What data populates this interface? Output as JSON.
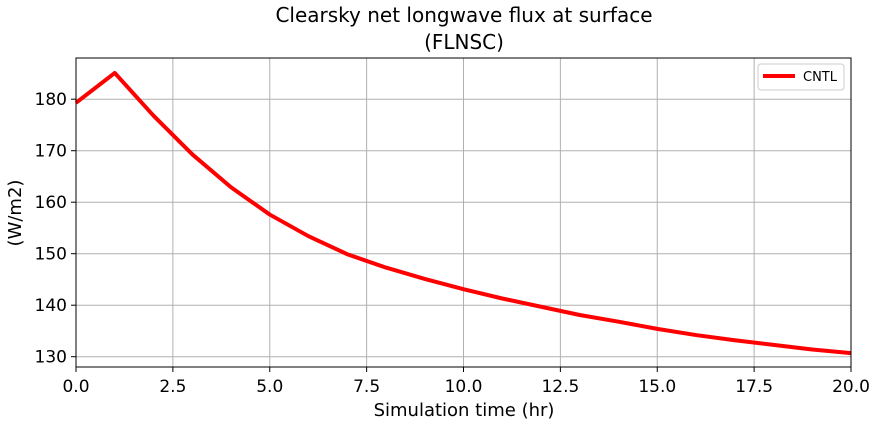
{
  "chart_data": {
    "type": "line",
    "title_line1": "Clearsky net longwave flux at surface",
    "title_line2": "(FLNSC)",
    "xlabel": "Simulation time (hr)",
    "ylabel": "(W/m2)",
    "xlim": [
      0,
      20
    ],
    "ylim": [
      128,
      188
    ],
    "xticks": [
      0,
      2.5,
      5,
      7.5,
      10,
      12.5,
      15,
      17.5,
      20
    ],
    "xtick_labels": [
      "0.0",
      "2.5",
      "5.0",
      "7.5",
      "10.0",
      "12.5",
      "15.0",
      "17.5",
      "20.0"
    ],
    "yticks": [
      130,
      140,
      150,
      160,
      170,
      180
    ],
    "ytick_labels": [
      "130",
      "140",
      "150",
      "160",
      "170",
      "180"
    ],
    "grid": true,
    "legend_position": "top-right",
    "series": [
      {
        "name": "CNTL",
        "color": "#ff0000",
        "x": [
          0,
          1,
          2,
          3,
          4,
          5,
          6,
          7,
          8,
          9,
          10,
          11,
          12,
          13,
          14,
          15,
          16,
          17,
          18,
          19,
          20
        ],
        "values": [
          179.3,
          185.1,
          176.8,
          169.3,
          162.9,
          157.6,
          153.4,
          149.9,
          147.3,
          145.1,
          143.1,
          141.3,
          139.7,
          138.1,
          136.8,
          135.4,
          134.2,
          133.2,
          132.3,
          131.4,
          130.7
        ]
      }
    ]
  }
}
